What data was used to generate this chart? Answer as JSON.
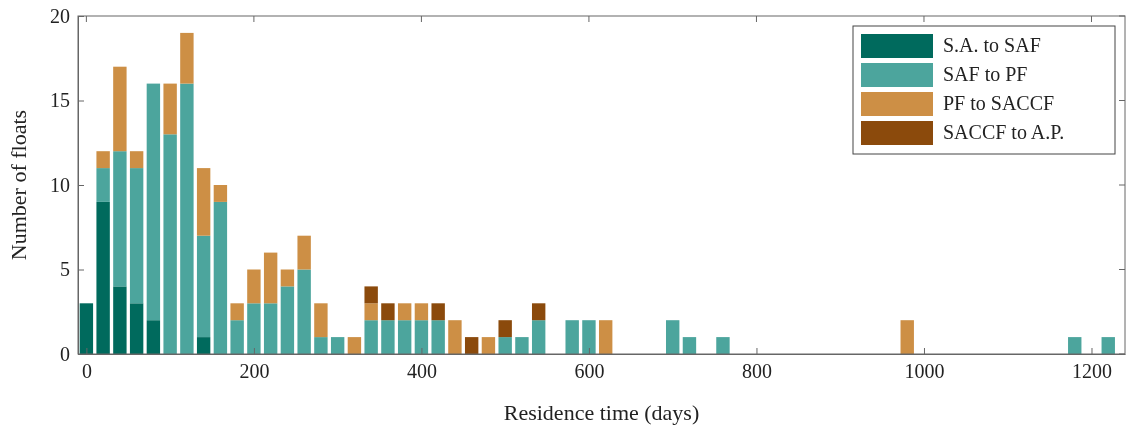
{
  "chart_data": {
    "type": "bar",
    "stacked": true,
    "xlabel": "Residence time (days)",
    "ylabel": "Number of floats",
    "x": [
      0,
      20,
      40,
      60,
      80,
      100,
      120,
      140,
      160,
      180,
      200,
      220,
      240,
      260,
      280,
      300,
      320,
      340,
      360,
      380,
      400,
      420,
      440,
      460,
      480,
      500,
      520,
      540,
      580,
      600,
      620,
      700,
      720,
      760,
      980,
      1180,
      1220
    ],
    "series": [
      {
        "name": "S.A. to SAF",
        "color": "#006a5d",
        "values": [
          3,
          9,
          4,
          3,
          2,
          0,
          0,
          1,
          0,
          0,
          0,
          0,
          0,
          0,
          0,
          0,
          0,
          0,
          0,
          0,
          0,
          0,
          0,
          0,
          0,
          0,
          0,
          0,
          0,
          0,
          0,
          0,
          0,
          0,
          0,
          0,
          0
        ]
      },
      {
        "name": "SAF to PF",
        "color": "#4ca59d",
        "values": [
          0,
          2,
          8,
          8,
          14,
          13,
          16,
          6,
          9,
          2,
          3,
          3,
          4,
          5,
          1,
          1,
          0,
          2,
          2,
          2,
          2,
          2,
          0,
          0,
          0,
          1,
          1,
          2,
          2,
          2,
          0,
          2,
          1,
          1,
          0,
          1,
          1
        ]
      },
      {
        "name": "PF to SACCF",
        "color": "#cd8f45",
        "values": [
          0,
          1,
          5,
          1,
          0,
          3,
          3,
          4,
          1,
          1,
          2,
          3,
          1,
          2,
          2,
          0,
          1,
          1,
          0,
          1,
          1,
          0,
          2,
          0,
          1,
          0,
          0,
          0,
          0,
          0,
          2,
          0,
          0,
          0,
          2,
          0,
          0
        ]
      },
      {
        "name": "SACCF to A.P.",
        "color": "#8b4a0c",
        "values": [
          0,
          0,
          0,
          0,
          0,
          0,
          0,
          0,
          0,
          0,
          0,
          0,
          0,
          0,
          0,
          0,
          0,
          1,
          1,
          0,
          0,
          1,
          0,
          1,
          0,
          1,
          0,
          1,
          0,
          0,
          0,
          0,
          0,
          0,
          0,
          0,
          0
        ]
      }
    ],
    "xlim": [
      -10,
      1240
    ],
    "xticks": [
      0,
      200,
      400,
      600,
      800,
      1000,
      1200
    ],
    "ylim": [
      0,
      20
    ],
    "yticks": [
      0,
      5,
      10,
      15,
      20
    ],
    "legend": "top right"
  }
}
